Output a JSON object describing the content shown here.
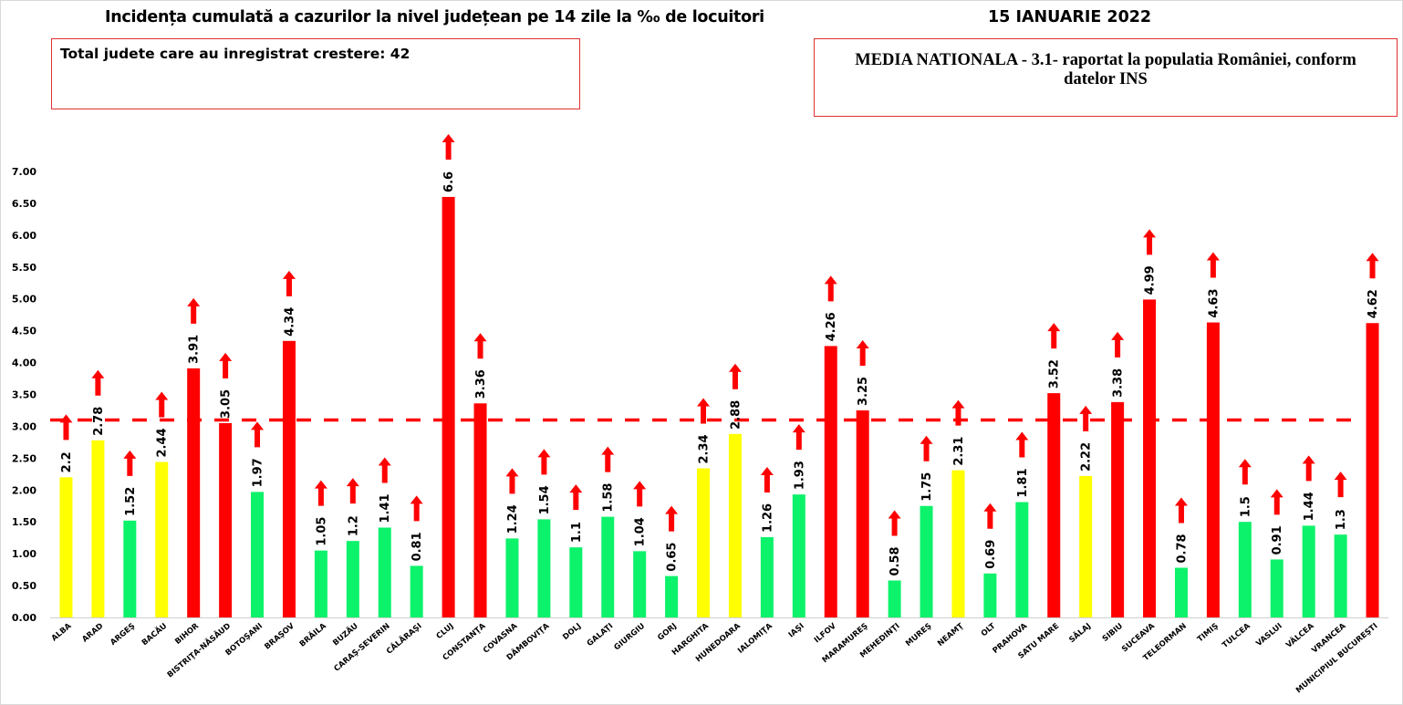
{
  "chart_data": {
    "type": "bar",
    "title": "Incidența cumulată a cazurilor la nivel județean pe 14 zile la ‰ de locuitori",
    "date": "15 IANUARIE 2022",
    "info_box": "Total judete care au inregistrat crestere: 42",
    "reference_box": "MEDIA NATIONALA - 3.1-  raportat la populatia României, conform datelor INS",
    "reference_value": 3.1,
    "xlabel": "",
    "ylabel": "",
    "ylim": [
      0,
      7
    ],
    "y_ticks": [
      "0.00",
      "0.50",
      "1.00",
      "1.50",
      "2.00",
      "2.50",
      "3.00",
      "3.50",
      "4.00",
      "4.50",
      "5.00",
      "5.50",
      "6.00",
      "6.50",
      "7.00"
    ],
    "grid": false,
    "colors": {
      "red": "#ff0000",
      "yellow": "#ffff00",
      "green": "#0cf26a",
      "reference_line": "#ff0000",
      "arrow": "#ff0000"
    },
    "categories": [
      "ALBA",
      "ARAD",
      "ARGEŞ",
      "BACĂU",
      "BIHOR",
      "BISTRIŢA-NĂSĂUD",
      "BOTOŞANI",
      "BRAŞOV",
      "BRĂILA",
      "BUZĂU",
      "CARAŞ-SEVERIN",
      "CĂLĂRAŞI",
      "CLUJ",
      "CONSTANŢA",
      "COVASNA",
      "DÂMBOVIŢA",
      "DOLJ",
      "GALAŢI",
      "GIURGIU",
      "GORJ",
      "HARGHITA",
      "HUNEDOARA",
      "IALOMIŢA",
      "IAŞI",
      "ILFOV",
      "MARAMUREŞ",
      "MEHEDINŢI",
      "MUREŞ",
      "NEAMŢ",
      "OLT",
      "PRAHOVA",
      "SATU MARE",
      "SĂLAJ",
      "SIBIU",
      "SUCEAVA",
      "TELEORMAN",
      "TIMIŞ",
      "TULCEA",
      "VASLUI",
      "VÂLCEA",
      "VRANCEA",
      "MUNICIPIUL BUCUREŞTI"
    ],
    "values": [
      2.2,
      2.78,
      1.52,
      2.44,
      3.91,
      3.05,
      1.97,
      4.34,
      1.05,
      1.2,
      1.41,
      0.81,
      6.6,
      3.36,
      1.24,
      1.54,
      1.1,
      1.58,
      1.04,
      0.65,
      2.34,
      2.88,
      1.26,
      1.93,
      4.26,
      3.25,
      0.58,
      1.75,
      2.31,
      0.69,
      1.81,
      3.52,
      2.22,
      3.38,
      4.99,
      0.78,
      4.63,
      1.5,
      0.91,
      1.44,
      1.3,
      4.62
    ],
    "value_labels": [
      "2.2",
      "2.78",
      "1.52",
      "2.44",
      "3.91",
      "3.05",
      "1.97",
      "4.34",
      "1.05",
      "1.2",
      "1.41",
      "0.81",
      "6.6",
      "3.36",
      "1.24",
      "1.54",
      "1.1",
      "1.58",
      "1.04",
      "0.65",
      "2.34",
      "2.88",
      "1.26",
      "1.93",
      "4.26",
      "3.25",
      "0.58",
      "1.75",
      "2.31",
      "0.69",
      "1.81",
      "3.52",
      "2.22",
      "3.38",
      "4.99",
      "0.78",
      "4.63",
      "1.5",
      "0.91",
      "1.44",
      "1.3",
      "4.62"
    ],
    "bar_colors": [
      "yellow",
      "yellow",
      "green",
      "yellow",
      "red",
      "red",
      "green",
      "red",
      "green",
      "green",
      "green",
      "green",
      "red",
      "red",
      "green",
      "green",
      "green",
      "green",
      "green",
      "green",
      "yellow",
      "yellow",
      "green",
      "green",
      "red",
      "red",
      "green",
      "green",
      "yellow",
      "green",
      "green",
      "red",
      "yellow",
      "red",
      "red",
      "green",
      "red",
      "green",
      "green",
      "green",
      "green",
      "red"
    ],
    "trend": "all-increasing"
  }
}
